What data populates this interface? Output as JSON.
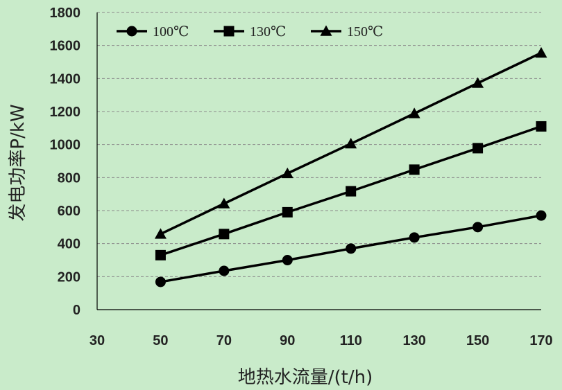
{
  "chart_data": {
    "type": "line",
    "x": [
      50,
      70,
      90,
      110,
      130,
      150,
      170
    ],
    "series": [
      {
        "name": "100℃",
        "marker": "circle",
        "values": [
          168,
          235,
          300,
          370,
          437,
          500,
          570
        ]
      },
      {
        "name": "130℃",
        "marker": "square",
        "values": [
          330,
          458,
          590,
          717,
          848,
          978,
          1110
        ]
      },
      {
        "name": "150℃",
        "marker": "triangle",
        "values": [
          458,
          642,
          825,
          1005,
          1188,
          1372,
          1555
        ]
      }
    ],
    "xlabel": "地热水流量/(t/h)",
    "ylabel": "发电功率P/kW",
    "xlim": [
      30,
      170
    ],
    "ylim": [
      0,
      1800
    ],
    "xticks": [
      "30",
      "50",
      "70",
      "90",
      "110",
      "130",
      "150",
      "170"
    ],
    "yticks": [
      "0",
      "200",
      "400",
      "600",
      "800",
      "1000",
      "1200",
      "1400",
      "1600",
      "1800"
    ],
    "grid": "horizontal-dashed",
    "legend": "top-left",
    "colors": {
      "background": "#c9ebca",
      "line": "#000000",
      "grid": "#8a8a8a"
    }
  }
}
